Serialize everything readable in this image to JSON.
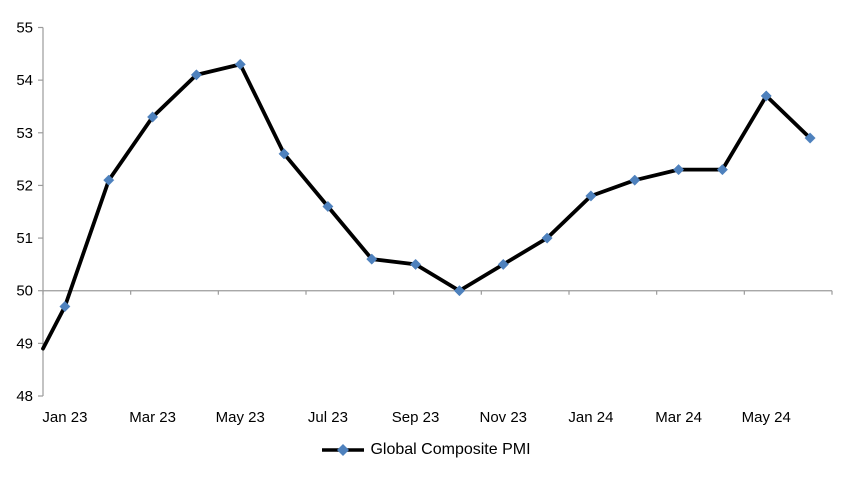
{
  "chart_data": {
    "type": "line",
    "title": "",
    "categories": [
      "Jan 23",
      "Feb 23",
      "Mar 23",
      "Apr 23",
      "May 23",
      "Jun 23",
      "Jul 23",
      "Aug 23",
      "Sep 23",
      "Oct 23",
      "Nov 23",
      "Dec 23",
      "Jan 24",
      "Feb 24",
      "Mar 24",
      "Apr 24",
      "May 24",
      "Jun 24"
    ],
    "x_tick_labels": [
      "Jan 23",
      "Mar 23",
      "May 23",
      "Jul 23",
      "Sep 23",
      "Nov 23",
      "Jan 24",
      "Mar 24",
      "May 24"
    ],
    "x_label_every": 2,
    "series": [
      {
        "name": "Global Composite PMI",
        "values": [
          49.7,
          52.1,
          53.3,
          54.1,
          54.3,
          52.6,
          51.6,
          50.6,
          50.5,
          50.0,
          50.5,
          51.0,
          51.8,
          52.1,
          52.3,
          52.3,
          53.7,
          52.9
        ],
        "marker": "diamond",
        "line_color": "#000000",
        "marker_color": "#4E81BD"
      }
    ],
    "line_enters_left_edge_at": 48.9,
    "ylim": [
      48,
      55
    ],
    "y_ticks": [
      48,
      49,
      50,
      51,
      52,
      53,
      54,
      55
    ],
    "x_axis_cross_value": 50,
    "grid": "off",
    "legend_position": "bottom-center",
    "xlabel": "",
    "ylabel": ""
  },
  "colors": {
    "background": "#FFFFFF",
    "axis": "#9B9B9B",
    "tick_text": "#000000",
    "series_line": "#000000",
    "series_marker": "#4E81BD"
  },
  "legend": {
    "label": "Global Composite PMI",
    "marker_icon": "line-with-diamond"
  }
}
